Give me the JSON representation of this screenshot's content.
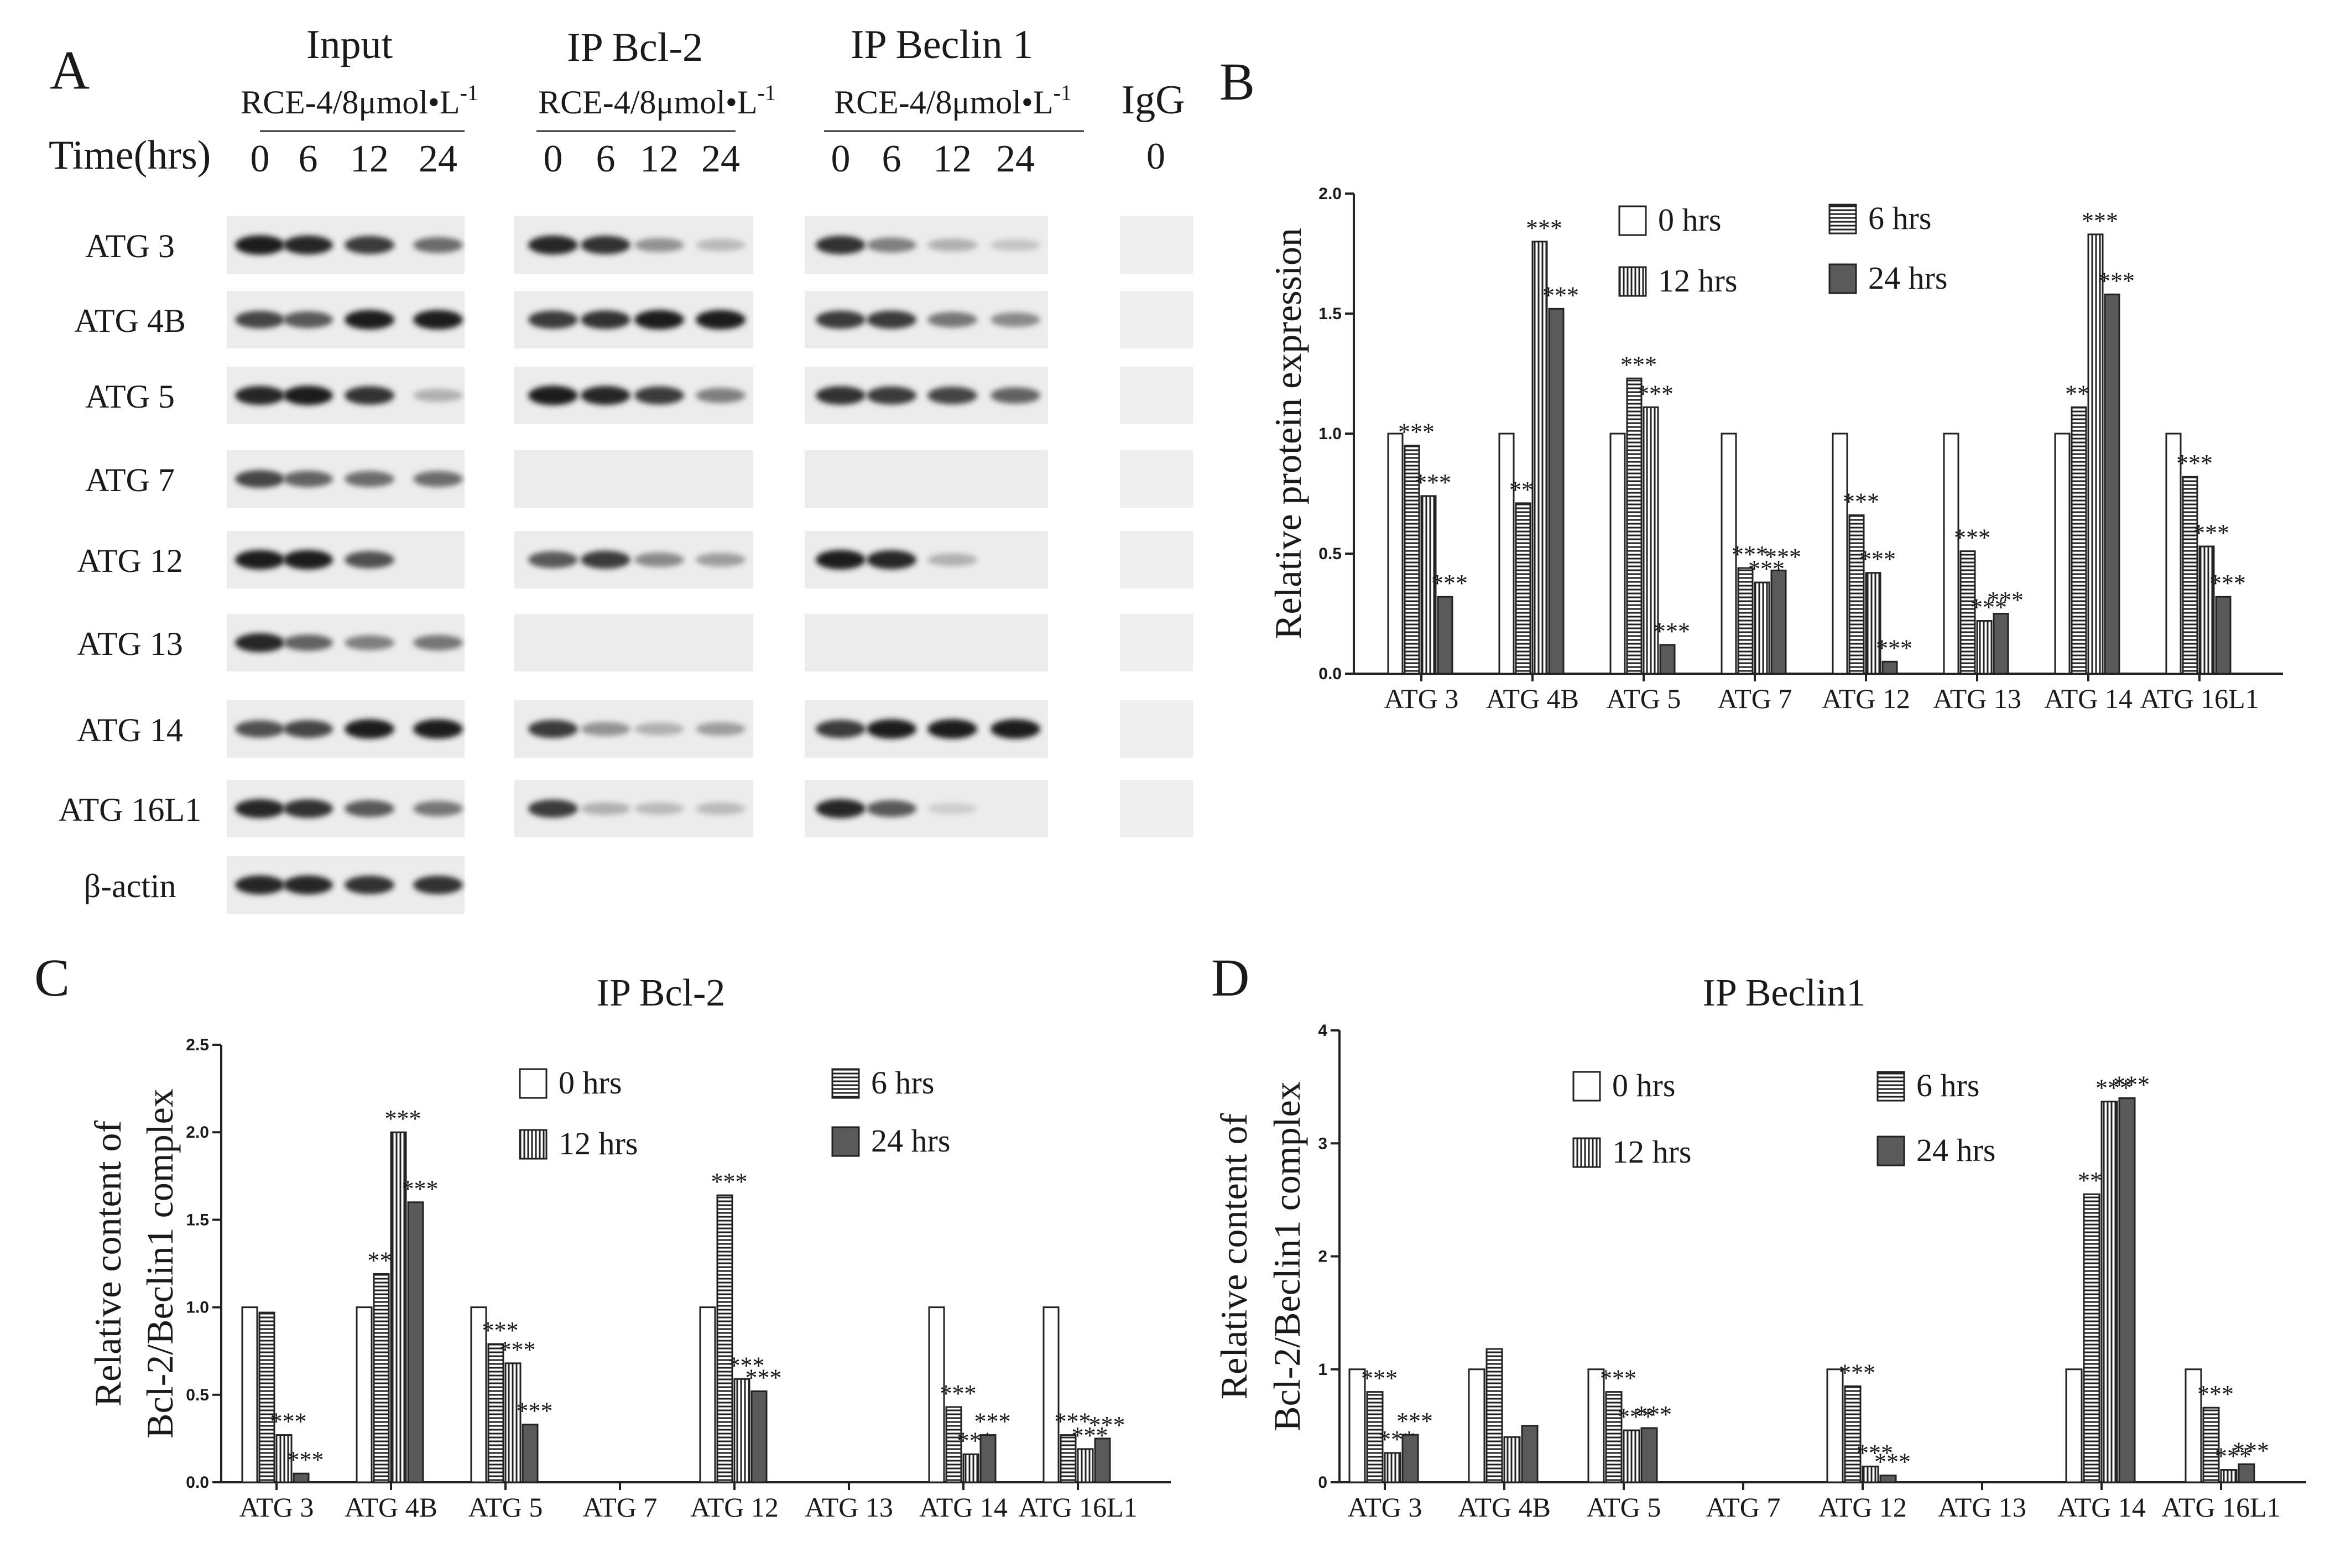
{
  "panel_a": {
    "letter": "A",
    "headers": {
      "input": "Input",
      "ip_bcl2": "IP Bcl-2",
      "ip_beclin1": "IP Beclin 1",
      "igg": "IgG",
      "treatment": "RCE-4/8μmol•L",
      "treatment_sup": "-1",
      "time_label": "Time(hrs)",
      "times": [
        "0",
        "6",
        "12",
        "24"
      ],
      "igg_time": "0"
    },
    "rows": [
      "ATG 3",
      "ATG 4B",
      "ATG 5",
      "ATG 7",
      "ATG 12",
      "ATG 13",
      "ATG 14",
      "ATG 16L1",
      "β-actin"
    ],
    "band_intensity": {
      "input": [
        [
          0.95,
          0.9,
          0.8,
          0.55
        ],
        [
          0.75,
          0.65,
          0.95,
          0.95
        ],
        [
          0.9,
          0.95,
          0.85,
          0.2
        ],
        [
          0.75,
          0.6,
          0.55,
          0.55
        ],
        [
          0.95,
          0.95,
          0.7,
          0
        ],
        [
          0.9,
          0.6,
          0.45,
          0.5
        ],
        [
          0.7,
          0.75,
          0.95,
          0.95
        ],
        [
          0.9,
          0.85,
          0.65,
          0.5
        ],
        [
          0.9,
          0.9,
          0.85,
          0.85
        ]
      ],
      "ip_bcl2": [
        [
          0.9,
          0.85,
          0.35,
          0.15
        ],
        [
          0.8,
          0.85,
          0.95,
          0.95
        ],
        [
          0.95,
          0.9,
          0.8,
          0.45
        ],
        [
          0,
          0,
          0,
          0
        ],
        [
          0.65,
          0.8,
          0.4,
          0.3
        ],
        [
          0,
          0,
          0,
          0
        ],
        [
          0.8,
          0.35,
          0.2,
          0.3
        ],
        [
          0.8,
          0.2,
          0.15,
          0.15
        ]
      ],
      "ip_beclin1": [
        [
          0.85,
          0.45,
          0.2,
          0.1
        ],
        [
          0.8,
          0.8,
          0.5,
          0.4
        ],
        [
          0.85,
          0.8,
          0.75,
          0.6
        ],
        [
          0,
          0,
          0,
          0
        ],
        [
          0.95,
          0.9,
          0.2,
          0
        ],
        [
          0,
          0,
          0,
          0
        ],
        [
          0.8,
          0.95,
          0.95,
          0.95
        ],
        [
          0.9,
          0.65,
          0.05,
          0
        ]
      ]
    }
  },
  "chart_data": [
    {
      "panel_letter": "B",
      "type": "bar",
      "title": "",
      "xlabel": "",
      "ylabel": "Relative protein expression",
      "ylabel_lines": [
        "Relative protein expression"
      ],
      "ylim": [
        0,
        2.0
      ],
      "ticks": [
        "0.0",
        "0.5",
        "1.0",
        "1.5",
        "2.0"
      ],
      "categories": [
        "ATG 3",
        "ATG 4B",
        "ATG 5",
        "ATG 7",
        "ATG 12",
        "ATG 13",
        "ATG 14",
        "ATG 16L1"
      ],
      "legend": [
        "0 hrs",
        "6 hrs",
        "12 hrs",
        "24 hrs"
      ],
      "series": [
        {
          "name": "0 hrs",
          "values": [
            1.0,
            1.0,
            1.0,
            1.0,
            1.0,
            1.0,
            1.0,
            1.0
          ]
        },
        {
          "name": "6 hrs",
          "values": [
            0.95,
            0.71,
            1.23,
            0.44,
            0.66,
            0.51,
            1.11,
            0.82
          ]
        },
        {
          "name": "12 hrs",
          "values": [
            0.74,
            1.8,
            1.11,
            0.38,
            0.42,
            0.22,
            1.83,
            0.53
          ]
        },
        {
          "name": "24 hrs",
          "values": [
            0.32,
            1.52,
            0.12,
            0.43,
            0.05,
            0.25,
            1.58,
            0.32
          ]
        }
      ],
      "significance_label": "***",
      "significance": [
        [
          false,
          true,
          true,
          true
        ],
        [
          false,
          true,
          true,
          true
        ],
        [
          false,
          true,
          true,
          true
        ],
        [
          false,
          true,
          true,
          true
        ],
        [
          false,
          true,
          true,
          true
        ],
        [
          false,
          true,
          true,
          true
        ],
        [
          false,
          true,
          true,
          true
        ],
        [
          false,
          true,
          true,
          true
        ]
      ]
    },
    {
      "panel_letter": "C",
      "type": "bar",
      "title": "IP Bcl-2",
      "xlabel": "",
      "ylabel": "Relative content of Bcl-2/Beclin1 complex",
      "ylabel_lines": [
        "Relative content of",
        "Bcl-2/Beclin1 complex"
      ],
      "ylim": [
        0,
        2.5
      ],
      "ticks": [
        "0.0",
        "0.5",
        "1.0",
        "1.5",
        "2.0",
        "2.5"
      ],
      "categories": [
        "ATG 3",
        "ATG 4B",
        "ATG 5",
        "ATG 7",
        "ATG 12",
        "ATG 13",
        "ATG 14",
        "ATG 16L1"
      ],
      "legend": [
        "0 hrs",
        "6 hrs",
        "12 hrs",
        "24 hrs"
      ],
      "series": [
        {
          "name": "0 hrs",
          "values": [
            1.0,
            1.0,
            1.0,
            0,
            1.0,
            0,
            1.0,
            1.0
          ]
        },
        {
          "name": "6 hrs",
          "values": [
            0.97,
            1.19,
            0.79,
            0,
            1.64,
            0,
            0.43,
            0.27
          ]
        },
        {
          "name": "12 hrs",
          "values": [
            0.27,
            2.0,
            0.68,
            0,
            0.59,
            0,
            0.16,
            0.19
          ]
        },
        {
          "name": "24 hrs",
          "values": [
            0.05,
            1.6,
            0.33,
            0,
            0.52,
            0,
            0.27,
            0.25
          ]
        }
      ],
      "significance_label": "***",
      "significance": [
        [
          false,
          false,
          true,
          true
        ],
        [
          false,
          true,
          true,
          true
        ],
        [
          false,
          true,
          true,
          true
        ],
        [
          false,
          false,
          false,
          false
        ],
        [
          false,
          true,
          true,
          true
        ],
        [
          false,
          false,
          false,
          false
        ],
        [
          false,
          true,
          true,
          true
        ],
        [
          false,
          true,
          true,
          true
        ]
      ]
    },
    {
      "panel_letter": "D",
      "type": "bar",
      "title": "IP Beclin1",
      "xlabel": "",
      "ylabel": "Relative content of Bcl-2/Beclin1 complex",
      "ylabel_lines": [
        "Relative content of",
        "Bcl-2/Beclin1 complex"
      ],
      "ylim": [
        0,
        4
      ],
      "ticks": [
        "0",
        "1",
        "2",
        "3",
        "4"
      ],
      "categories": [
        "ATG 3",
        "ATG 4B",
        "ATG 5",
        "ATG 7",
        "ATG 12",
        "ATG 13",
        "ATG 14",
        "ATG 16L1"
      ],
      "legend": [
        "0 hrs",
        "6 hrs",
        "12 hrs",
        "24 hrs"
      ],
      "series": [
        {
          "name": "0 hrs",
          "values": [
            1.0,
            1.0,
            1.0,
            0,
            1.0,
            0,
            1.0,
            1.0
          ]
        },
        {
          "name": "6 hrs",
          "values": [
            0.8,
            1.18,
            0.8,
            0,
            0.85,
            0,
            2.55,
            0.66
          ]
        },
        {
          "name": "12 hrs",
          "values": [
            0.26,
            0.4,
            0.46,
            0,
            0.14,
            0,
            3.37,
            0.11
          ]
        },
        {
          "name": "24 hrs",
          "values": [
            0.42,
            0.5,
            0.48,
            0,
            0.06,
            0,
            3.4,
            0.16
          ]
        }
      ],
      "significance_label": "***",
      "significance": [
        [
          false,
          true,
          true,
          true
        ],
        [
          false,
          false,
          false,
          false
        ],
        [
          false,
          true,
          true,
          true
        ],
        [
          false,
          false,
          false,
          false
        ],
        [
          false,
          true,
          true,
          true
        ],
        [
          false,
          false,
          false,
          false
        ],
        [
          false,
          true,
          true,
          true
        ],
        [
          false,
          true,
          true,
          true
        ]
      ]
    }
  ]
}
